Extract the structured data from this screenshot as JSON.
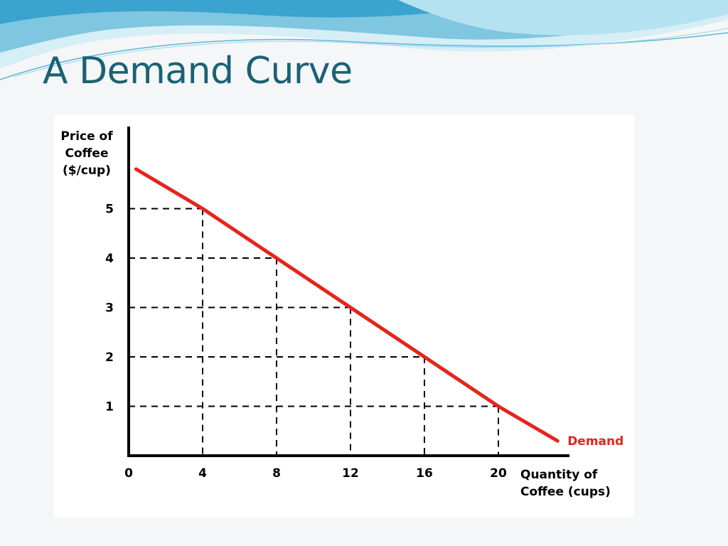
{
  "slide": {
    "title": "A Demand Curve"
  },
  "theme": {
    "title_color": "#1b6175",
    "banner_light": "#d6eef6",
    "banner_mid": "#7fc6e0",
    "banner_dark": "#3aa3cf"
  },
  "chart_data": {
    "type": "line",
    "ylabel_lines": [
      "Price of",
      "Coffee",
      "($/cup)"
    ],
    "xlabel_lines": [
      "Quantity of",
      "Coffee (cups)"
    ],
    "xticks": [
      "0",
      "4",
      "8",
      "12",
      "16",
      "20"
    ],
    "yticks": [
      "1",
      "2",
      "3",
      "4",
      "5"
    ],
    "xlim": [
      0,
      24
    ],
    "ylim": [
      0,
      6
    ],
    "grid": "dashed guide lines from each labeled point to both axes",
    "series": [
      {
        "name": "Demand",
        "color": "#e8231c",
        "x": [
          0.4,
          4,
          8,
          12,
          16,
          20,
          23.2
        ],
        "y": [
          5.8,
          5,
          4,
          3,
          2,
          1,
          0.3
        ]
      }
    ],
    "guide_points": [
      {
        "x": 4,
        "y": 5
      },
      {
        "x": 8,
        "y": 4
      },
      {
        "x": 12,
        "y": 3
      },
      {
        "x": 16,
        "y": 2
      },
      {
        "x": 20,
        "y": 1
      }
    ]
  }
}
